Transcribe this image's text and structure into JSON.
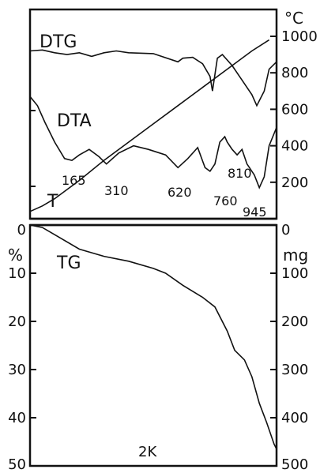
{
  "chart_data": {
    "type": "line",
    "title": "",
    "upper_panel": {
      "right_axis": {
        "unit": "°C",
        "ticks": [
          "1000",
          "800",
          "600",
          "400",
          "200",
          "0"
        ],
        "ylim": [
          0,
          1000
        ]
      },
      "curve_labels": {
        "dtg": "DTG",
        "dta": "DTA",
        "t": "T"
      },
      "peak_labels": [
        "165",
        "310",
        "620",
        "760",
        "810",
        "945"
      ],
      "series": [
        {
          "name": "T",
          "note": "temperature, read against right °C axis",
          "x": [
            0,
            0.05,
            0.1,
            0.2,
            0.3,
            0.4,
            0.5,
            0.6,
            0.7,
            0.8,
            0.9,
            0.97
          ],
          "y": [
            40,
            70,
            110,
            210,
            320,
            420,
            520,
            620,
            720,
            820,
            920,
            980
          ]
        },
        {
          "name": "DTG",
          "note": "relative trace",
          "x": [
            0,
            0.05,
            0.1,
            0.15,
            0.2,
            0.25,
            0.3,
            0.35,
            0.4,
            0.5,
            0.6,
            0.62,
            0.66,
            0.7,
            0.73,
            0.74,
            0.75,
            0.76,
            0.78,
            0.82,
            0.86,
            0.9,
            0.92,
            0.95,
            0.97,
            1.0
          ],
          "y": [
            920,
            925,
            910,
            900,
            910,
            890,
            910,
            920,
            910,
            905,
            860,
            880,
            885,
            850,
            780,
            700,
            790,
            880,
            900,
            840,
            760,
            680,
            620,
            700,
            820,
            860
          ]
        },
        {
          "name": "DTA",
          "note": "relative trace",
          "x": [
            0,
            0.03,
            0.06,
            0.1,
            0.14,
            0.17,
            0.2,
            0.24,
            0.28,
            0.31,
            0.36,
            0.42,
            0.48,
            0.55,
            0.6,
            0.64,
            0.68,
            0.71,
            0.73,
            0.75,
            0.77,
            0.79,
            0.8,
            0.82,
            0.84,
            0.86,
            0.88,
            0.91,
            0.93,
            0.95,
            0.97,
            1.0
          ],
          "y": [
            670,
            620,
            530,
            420,
            330,
            320,
            350,
            380,
            340,
            300,
            360,
            400,
            380,
            350,
            280,
            330,
            390,
            280,
            260,
            300,
            420,
            450,
            420,
            380,
            350,
            380,
            300,
            240,
            170,
            230,
            400,
            500
          ]
        }
      ]
    },
    "lower_panel": {
      "curve_label": "TG",
      "left_axis": {
        "unit": "%",
        "ticks": [
          "0",
          "10",
          "20",
          "30",
          "40",
          "50"
        ],
        "ylim": [
          0,
          50
        ],
        "inverted": true
      },
      "right_axis": {
        "unit": "mg",
        "ticks": [
          "0",
          "100",
          "200",
          "300",
          "400",
          "500"
        ],
        "ylim": [
          0,
          500
        ],
        "inverted": true
      },
      "xlabel": "2K",
      "series": [
        {
          "name": "TG",
          "x": [
            0,
            0.05,
            0.1,
            0.2,
            0.3,
            0.4,
            0.5,
            0.55,
            0.62,
            0.7,
            0.75,
            0.8,
            0.83,
            0.87,
            0.9,
            0.93,
            0.96,
            0.99,
            1.0
          ],
          "y": [
            0,
            0.5,
            2,
            5,
            6.5,
            7.5,
            9,
            10,
            12.5,
            15,
            17,
            22,
            26,
            28,
            31.5,
            37,
            41,
            45.5,
            46.5
          ]
        }
      ]
    }
  }
}
